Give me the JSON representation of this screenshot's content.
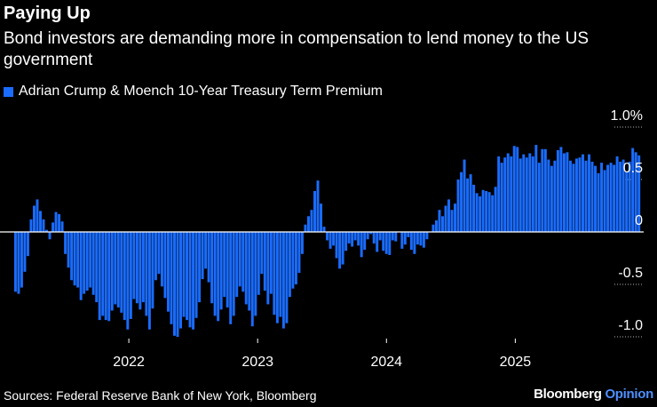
{
  "header": {
    "title": "Paying Up",
    "subtitle": "Bond investors are demanding more in compensation to lend money to the US government"
  },
  "legend": {
    "label": "Adrian Crump & Moench 10-Year Treasury Term Premium"
  },
  "footer": {
    "sources": "Sources: Federal Reserve Bank of New York, Bloomberg"
  },
  "brand": {
    "name": "Bloomberg",
    "accent": "Opinion"
  },
  "colors": {
    "background": "#000000",
    "bar": "#1a6cff",
    "gridline": "#ffffff",
    "axis_text": "#ffffff"
  },
  "chart_data": {
    "type": "bar",
    "title": "Paying Up",
    "series": [
      {
        "name": "Adrian Crump & Moench 10-Year Treasury Term Premium",
        "x_start": 2021.12,
        "x_end": 2025.96,
        "values": [
          -0.57,
          -0.59,
          -0.53,
          -0.38,
          -0.23,
          0.12,
          0.25,
          0.31,
          0.2,
          0.12,
          0.02,
          -0.07,
          0.09,
          0.19,
          0.17,
          0.1,
          -0.21,
          -0.34,
          -0.46,
          -0.51,
          -0.53,
          -0.65,
          -0.59,
          -0.56,
          -0.53,
          -0.6,
          -0.67,
          -0.84,
          -0.8,
          -0.84,
          -0.85,
          -0.75,
          -0.69,
          -0.72,
          -0.77,
          -0.84,
          -0.93,
          -0.83,
          -0.64,
          -0.68,
          -0.74,
          -0.67,
          -0.8,
          -0.93,
          -0.73,
          -0.46,
          -0.4,
          -0.52,
          -0.63,
          -0.76,
          -0.88,
          -0.99,
          -1.0,
          -0.92,
          -0.81,
          -0.84,
          -0.91,
          -0.93,
          -0.82,
          -0.67,
          -0.45,
          -0.35,
          -0.48,
          -0.68,
          -0.8,
          -0.85,
          -0.74,
          -0.62,
          -0.72,
          -0.88,
          -0.8,
          -0.62,
          -0.52,
          -0.57,
          -0.69,
          -0.75,
          -0.9,
          -0.8,
          -0.6,
          -0.4,
          -0.56,
          -0.69,
          -0.59,
          -0.79,
          -0.87,
          -0.81,
          -0.92,
          -0.87,
          -0.62,
          -0.54,
          -0.5,
          -0.39,
          -0.21,
          0.07,
          0.15,
          0.21,
          0.39,
          0.49,
          0.27,
          0.05,
          -0.08,
          -0.16,
          -0.13,
          -0.25,
          -0.35,
          -0.31,
          -0.18,
          -0.11,
          -0.14,
          -0.08,
          -0.13,
          -0.24,
          -0.17,
          -0.07,
          -0.02,
          -0.11,
          -0.19,
          -0.08,
          -0.18,
          -0.21,
          -0.22,
          -0.08,
          -0.09,
          0.0,
          -0.16,
          -0.12,
          -0.05,
          -0.17,
          -0.21,
          -0.12,
          -0.13,
          -0.15,
          -0.07,
          0.0,
          0.07,
          0.11,
          0.21,
          0.15,
          0.25,
          0.31,
          0.21,
          0.27,
          0.5,
          0.57,
          0.69,
          0.51,
          0.55,
          0.45,
          0.37,
          0.34,
          0.4,
          0.39,
          0.38,
          0.35,
          0.43,
          0.72,
          0.66,
          0.71,
          0.75,
          0.72,
          0.82,
          0.81,
          0.7,
          0.74,
          0.71,
          0.75,
          0.72,
          0.83,
          0.66,
          0.79,
          0.79,
          0.69,
          0.63,
          0.68,
          0.78,
          0.81,
          0.75,
          0.76,
          0.68,
          0.65,
          0.7,
          0.71,
          0.74,
          0.68,
          0.74,
          0.67,
          0.63,
          0.56,
          0.66,
          0.59,
          0.64,
          0.66,
          0.64,
          0.72,
          0.67,
          0.69,
          0.57,
          0.67,
          0.8,
          0.76,
          0.73
        ]
      }
    ],
    "x_ticks": [
      "2022",
      "2023",
      "2024",
      "2025"
    ],
    "x_tick_values": [
      2022,
      2023,
      2024,
      2025
    ],
    "xlim": [
      2021,
      2026.1
    ],
    "y_ticks": [
      1.0,
      0.5,
      0,
      -0.5,
      -1.0
    ],
    "y_tick_labels": [
      "1.0%",
      "0.5",
      "0",
      "-0.5",
      "-1.0"
    ],
    "ylim": [
      -1.05,
      1.05
    ],
    "xlabel": "",
    "ylabel": "",
    "grid": true,
    "legend_position": "top-left"
  }
}
